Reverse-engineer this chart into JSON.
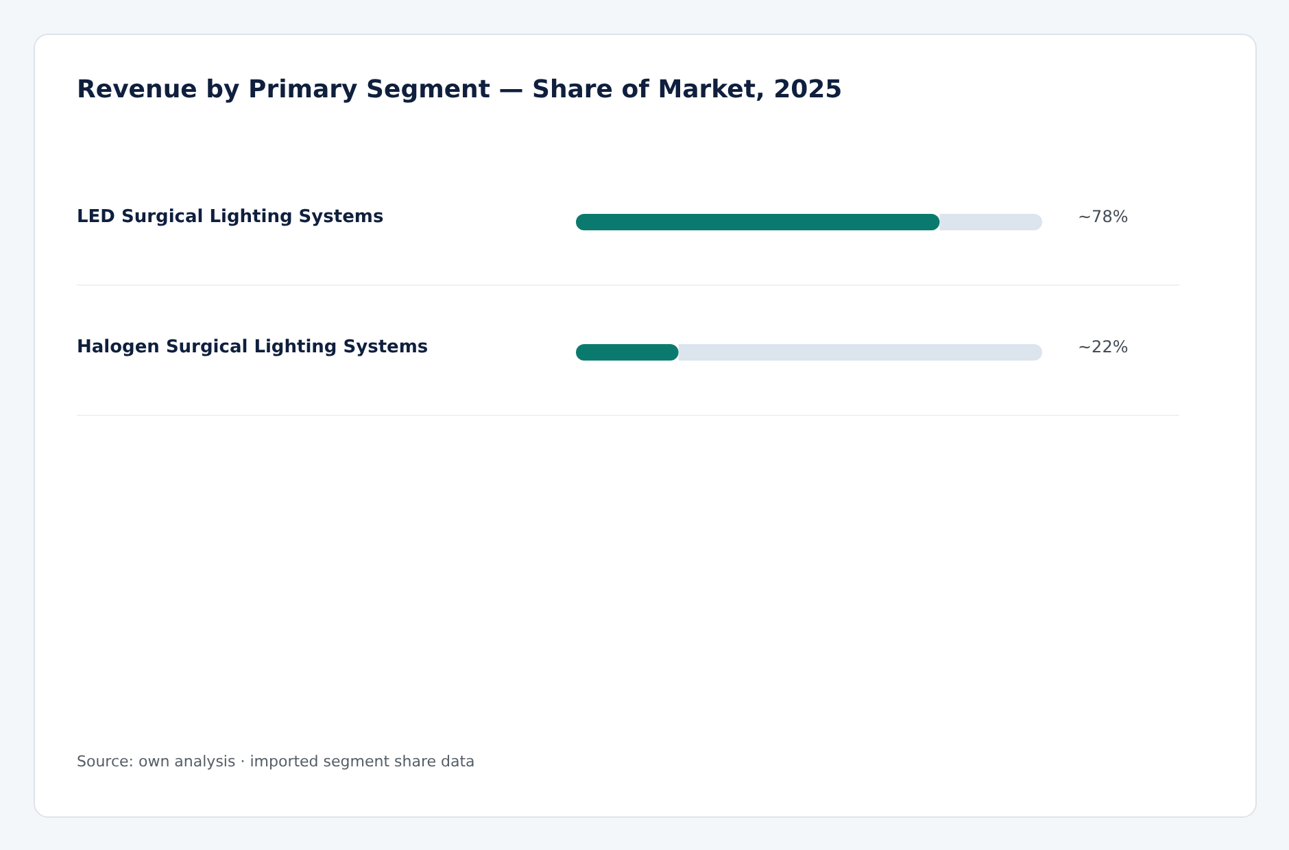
{
  "chart_data": {
    "type": "bar",
    "orientation": "horizontal",
    "title": "Revenue by Primary Segment — Share of Market, 2025",
    "categories": [
      "LED Surgical Lighting Systems",
      "Halogen Surgical Lighting Systems"
    ],
    "values": [
      78,
      22
    ],
    "color": "#0b7a6e",
    "value_labels": [
      "~78%",
      "~22%"
    ],
    "xlim": [
      0,
      100
    ],
    "annotations": [
      "Source: own analysis · imported segment share data"
    ]
  }
}
